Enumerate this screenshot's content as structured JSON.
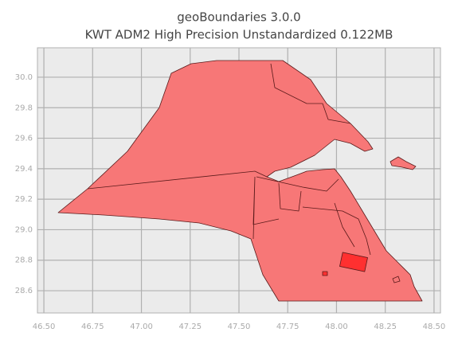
{
  "chart_data": {
    "type": "map",
    "title": "geoBoundaries 3.0.0",
    "subtitle": "KWT ADM2 High Precision Unstandardized 0.122MB",
    "color": "#f77777",
    "edge_color": "#5a1a1a",
    "highlight_color": "#ff3030",
    "grid": true,
    "xlim": [
      46.467,
      48.533
    ],
    "ylim": [
      28.454,
      30.193
    ],
    "xticks": [
      {
        "value": 46.5,
        "label": "46.50"
      },
      {
        "value": 46.75,
        "label": "46.75"
      },
      {
        "value": 47.0,
        "label": "47.00"
      },
      {
        "value": 47.25,
        "label": "47.25"
      },
      {
        "value": 47.5,
        "label": "47.50"
      },
      {
        "value": 47.75,
        "label": "47.75"
      },
      {
        "value": 48.0,
        "label": "48.00"
      },
      {
        "value": 48.25,
        "label": "48.25"
      },
      {
        "value": 48.5,
        "label": "48.50"
      }
    ],
    "yticks": [
      {
        "value": 28.6,
        "label": "28.6"
      },
      {
        "value": 28.8,
        "label": "28.8"
      },
      {
        "value": 29.0,
        "label": "29.0"
      },
      {
        "value": 29.2,
        "label": "29.2"
      },
      {
        "value": 29.4,
        "label": "29.4"
      },
      {
        "value": 29.6,
        "label": "29.6"
      },
      {
        "value": 29.8,
        "label": "29.8"
      },
      {
        "value": 30.0,
        "label": "30.0"
      }
    ]
  }
}
